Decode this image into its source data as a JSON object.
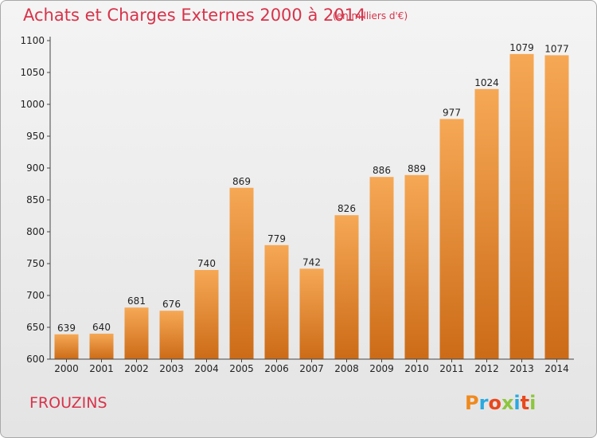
{
  "header": {
    "title": "Achats et Charges Externes 2000 à 2014",
    "subtitle": "(en milliers d'€)"
  },
  "footer": {
    "commune": "FROUZINS",
    "logo_text": "Proxiti",
    "logo_colors": [
      "#f08a1d",
      "#2aa9e0",
      "#e8491d",
      "#8cc63f",
      "#2aa9e0",
      "#e8491d",
      "#8cc63f"
    ]
  },
  "chart_data": {
    "type": "bar",
    "title": "Achats et Charges Externes 2000 à 2014",
    "subtitle": "(en milliers d'€)",
    "xlabel": "",
    "ylabel": "",
    "categories": [
      "2000",
      "2001",
      "2002",
      "2003",
      "2004",
      "2005",
      "2006",
      "2007",
      "2008",
      "2009",
      "2010",
      "2011",
      "2012",
      "2013",
      "2014"
    ],
    "values": [
      639,
      640,
      681,
      676,
      740,
      869,
      779,
      742,
      826,
      886,
      889,
      977,
      1024,
      1079,
      1077
    ],
    "ylim": [
      600,
      1100
    ],
    "yticks": [
      600,
      650,
      700,
      750,
      800,
      850,
      900,
      950,
      1000,
      1050,
      1100
    ],
    "grid": false,
    "bar_color_top": "#f6a855",
    "bar_color_bottom": "#cc6b17"
  }
}
